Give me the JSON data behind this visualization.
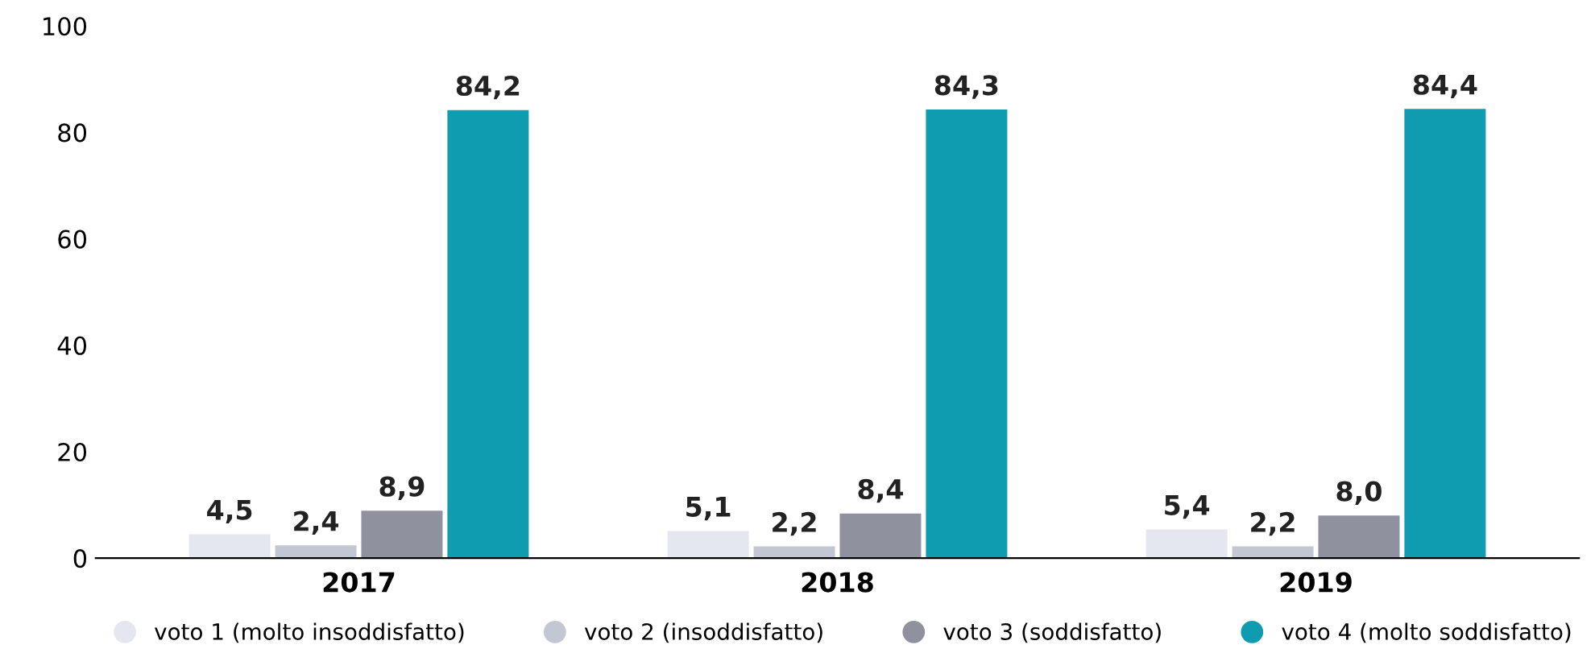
{
  "chart_data": {
    "type": "bar",
    "categories": [
      "2017",
      "2018",
      "2019"
    ],
    "series": [
      {
        "name": "voto 1 (molto insoddisfatto)",
        "color": "#e4e7f0",
        "values": [
          4.5,
          5.1,
          5.4
        ],
        "value_labels": [
          "4,5",
          "5,1",
          "5,4"
        ]
      },
      {
        "name": "voto 2 (insoddisfatto)",
        "color": "#c3c6d3",
        "values": [
          2.4,
          2.2,
          2.2
        ],
        "value_labels": [
          "2,4",
          "2,2",
          "2,2"
        ]
      },
      {
        "name": "voto 3 (soddisfatto)",
        "color": "#8f929e",
        "values": [
          8.9,
          8.4,
          8.0
        ],
        "value_labels": [
          "8,9",
          "8,4",
          "8,0"
        ]
      },
      {
        "name": "voto 4 (molto soddisfatto)",
        "color": "#0f9bb0",
        "values": [
          84.2,
          84.3,
          84.4
        ],
        "value_labels": [
          "84,2",
          "84,3",
          "84,4"
        ]
      }
    ],
    "ylim": [
      0,
      100
    ],
    "yticks": [
      0,
      20,
      40,
      60,
      80,
      100
    ],
    "grid": false,
    "legend": "bottom"
  }
}
